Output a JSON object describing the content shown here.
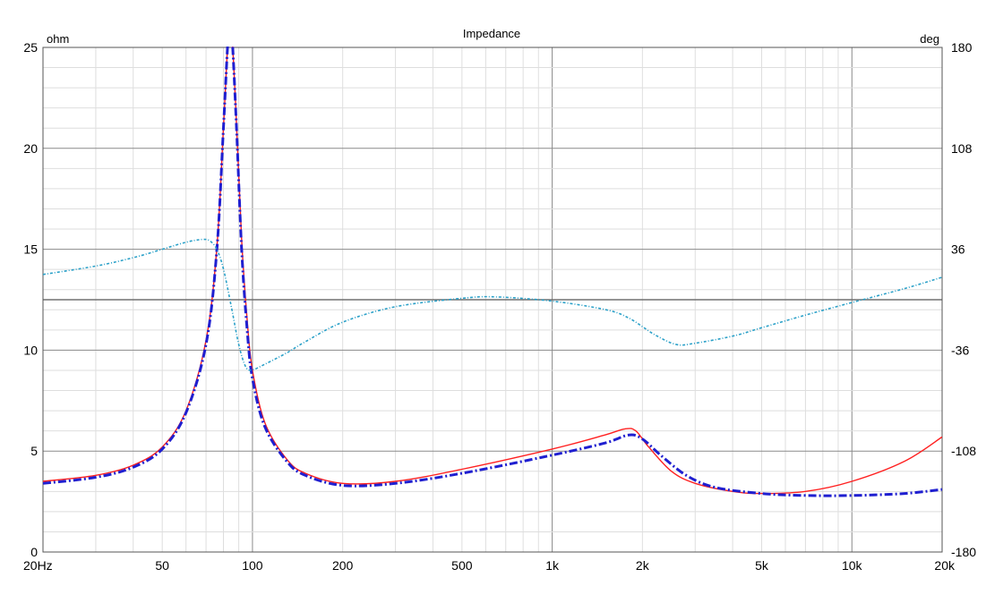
{
  "chart_data": {
    "type": "line",
    "title": "Impedance",
    "x_scale": "log",
    "xlim": [
      20,
      20000
    ],
    "ylim_left": [
      0,
      25
    ],
    "ylim_right": [
      -180,
      180
    ],
    "y_left_unit": "ohm",
    "y_right_unit": "deg",
    "grid": true,
    "x_ticks": [
      {
        "value": 20,
        "label": "20Hz"
      },
      {
        "value": 50,
        "label": "50"
      },
      {
        "value": 100,
        "label": "100"
      },
      {
        "value": 200,
        "label": "200"
      },
      {
        "value": 500,
        "label": "500"
      },
      {
        "value": 1000,
        "label": "1k"
      },
      {
        "value": 2000,
        "label": "2k"
      },
      {
        "value": 5000,
        "label": "5k"
      },
      {
        "value": 10000,
        "label": "10k"
      },
      {
        "value": 20000,
        "label": "20k"
      }
    ],
    "y_left_ticks": [
      {
        "value": 0,
        "label": "0"
      },
      {
        "value": 5,
        "label": "5"
      },
      {
        "value": 10,
        "label": "10"
      },
      {
        "value": 15,
        "label": "15"
      },
      {
        "value": 20,
        "label": "20"
      },
      {
        "value": 25,
        "label": "25"
      }
    ],
    "y_right_ticks": [
      {
        "value": -180,
        "label": "-180"
      },
      {
        "value": -108,
        "label": "-108"
      },
      {
        "value": -36,
        "label": "-36"
      },
      {
        "value": 36,
        "label": "36"
      },
      {
        "value": 108,
        "label": "108"
      },
      {
        "value": 180,
        "label": "180"
      }
    ],
    "series": [
      {
        "axis": "left",
        "color": "#ff2020",
        "style": "solid",
        "x": [
          20,
          30,
          40,
          50,
          60,
          70,
          76,
          80,
          83,
          85,
          88,
          92,
          96,
          100,
          110,
          130,
          150,
          200,
          300,
          500,
          1000,
          1500,
          1750,
          1900,
          2100,
          2500,
          3000,
          4000,
          5000,
          7000,
          10000,
          15000,
          20000
        ],
        "y": [
          3.5,
          3.8,
          4.3,
          5.2,
          7.0,
          10.5,
          15.0,
          21.0,
          25.5,
          26.0,
          22.0,
          15.5,
          11.5,
          9.0,
          6.4,
          4.6,
          3.9,
          3.4,
          3.5,
          4.1,
          5.1,
          5.8,
          6.1,
          6.0,
          5.2,
          4.0,
          3.4,
          3.0,
          2.9,
          3.0,
          3.5,
          4.5,
          5.7
        ]
      },
      {
        "axis": "left",
        "color": "#1f1fd0",
        "style": "dash-dot",
        "x": [
          20,
          30,
          40,
          50,
          60,
          70,
          76,
          80,
          83,
          85,
          88,
          92,
          96,
          100,
          110,
          130,
          150,
          200,
          300,
          500,
          1000,
          1500,
          1800,
          2000,
          2300,
          2800,
          3500,
          5000,
          7000,
          10000,
          15000,
          20000
        ],
        "y": [
          3.4,
          3.7,
          4.2,
          5.1,
          6.9,
          10.3,
          14.9,
          21.0,
          25.5,
          26.0,
          21.8,
          15.0,
          11.0,
          8.6,
          6.2,
          4.5,
          3.8,
          3.3,
          3.4,
          3.9,
          4.8,
          5.4,
          5.8,
          5.6,
          4.8,
          3.8,
          3.2,
          2.9,
          2.8,
          2.8,
          2.9,
          3.1
        ]
      },
      {
        "axis": "right",
        "color": "#2aa0c8",
        "style": "dotted",
        "x": [
          20,
          30,
          40,
          50,
          60,
          68,
          72,
          76,
          80,
          85,
          90,
          95,
          100,
          110,
          130,
          150,
          200,
          300,
          500,
          650,
          1000,
          1500,
          1800,
          2200,
          2600,
          3000,
          4000,
          5000,
          7000,
          10000,
          15000,
          20000
        ],
        "y": [
          18.0,
          24.0,
          30.0,
          36.0,
          41.0,
          43.0,
          42.0,
          36.0,
          22.0,
          -5.0,
          -32.0,
          -48.0,
          -50.0,
          -46.0,
          -38.0,
          -30.0,
          -16.0,
          -5.0,
          1.0,
          2.0,
          -1.0,
          -7.0,
          -13.0,
          -25.0,
          -32.0,
          -31.0,
          -26.0,
          -20.0,
          -11.0,
          -2.0,
          8.0,
          16.0
        ]
      }
    ]
  }
}
